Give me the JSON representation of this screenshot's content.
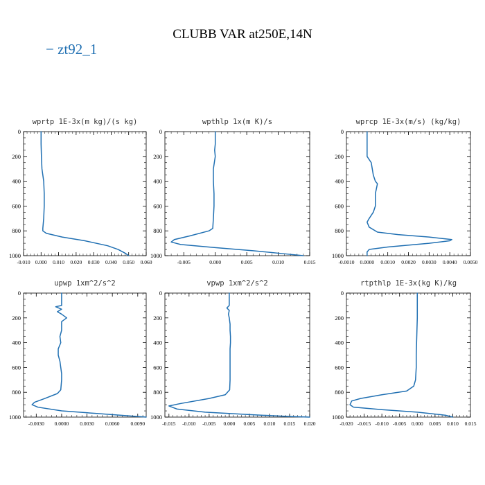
{
  "title": "CLUBB VAR at250E,14N",
  "legend": {
    "dash": "−",
    "label": "zt92_1",
    "color": "#1f6fb2"
  },
  "chart_data": [
    {
      "type": "line",
      "title": "wprtp  1E-3x(m kg)/(s kg)",
      "xlim": [
        -0.01,
        0.06
      ],
      "ylim": [
        0,
        1000
      ],
      "xticks": [
        -0.01,
        0.0,
        0.01,
        0.02,
        0.03,
        0.04,
        0.05,
        0.06
      ],
      "xtick_labels": [
        "-0.010",
        "0.000",
        "0.010",
        "0.020",
        "0.030",
        "0.040",
        "0.050",
        "0.060"
      ],
      "yticks": [
        0,
        200,
        400,
        600,
        800,
        1000
      ],
      "ytick_labels": [
        "0",
        "200",
        "400",
        "600",
        "800",
        "1000"
      ],
      "series": [
        {
          "name": "zt92_1",
          "points": [
            [
              0.0,
              0
            ],
            [
              0.0,
              100
            ],
            [
              0.0002,
              200
            ],
            [
              0.0005,
              300
            ],
            [
              0.0015,
              400
            ],
            [
              0.0018,
              500
            ],
            [
              0.0018,
              600
            ],
            [
              0.0015,
              700
            ],
            [
              0.001,
              780
            ],
            [
              0.001,
              800
            ],
            [
              0.003,
              820
            ],
            [
              0.012,
              850
            ],
            [
              0.025,
              880
            ],
            [
              0.038,
              920
            ],
            [
              0.044,
              950
            ],
            [
              0.048,
              980
            ],
            [
              0.05,
              1000
            ]
          ]
        }
      ]
    },
    {
      "type": "line",
      "title": "wpthlp  1x(m K)/s",
      "xlim": [
        -0.008,
        0.015
      ],
      "ylim": [
        0,
        1000
      ],
      "xticks": [
        -0.005,
        0.0,
        0.005,
        0.01,
        0.015
      ],
      "xtick_labels": [
        "-0.005",
        "0.000",
        "0.005",
        "0.010",
        "0.015"
      ],
      "yticks": [
        0,
        200,
        400,
        600,
        800,
        1000
      ],
      "ytick_labels": [
        "0",
        "200",
        "400",
        "600",
        "800",
        "1000"
      ],
      "series": [
        {
          "name": "zt92_1",
          "points": [
            [
              0.0,
              0
            ],
            [
              0.0,
              100
            ],
            [
              -0.0001,
              150
            ],
            [
              0.0,
              200
            ],
            [
              -0.0003,
              300
            ],
            [
              -0.0003,
              400
            ],
            [
              -0.0002,
              500
            ],
            [
              -0.0002,
              600
            ],
            [
              -0.0003,
              700
            ],
            [
              -0.0004,
              780
            ],
            [
              -0.001,
              800
            ],
            [
              -0.004,
              840
            ],
            [
              -0.0065,
              870
            ],
            [
              -0.007,
              890
            ],
            [
              -0.0055,
              910
            ],
            [
              0.0,
              935
            ],
            [
              0.006,
              960
            ],
            [
              0.011,
              985
            ],
            [
              0.014,
              1000
            ]
          ]
        }
      ]
    },
    {
      "type": "line",
      "title": "wprcp  1E-3x(m/s) (kg/kg)",
      "xlim": [
        -0.001,
        0.005
      ],
      "ylim": [
        0,
        1000
      ],
      "xticks": [
        -0.001,
        0.0,
        0.001,
        0.002,
        0.003,
        0.004,
        0.005
      ],
      "xtick_labels": [
        "-0.0010",
        "0.0000",
        "0.0010",
        "0.0020",
        "0.0030",
        "0.0040",
        "0.0050"
      ],
      "yticks": [
        0,
        200,
        400,
        600,
        800,
        1000
      ],
      "ytick_labels": [
        "0",
        "200",
        "400",
        "600",
        "800",
        "1000"
      ],
      "series": [
        {
          "name": "zt92_1",
          "points": [
            [
              0.0,
              0
            ],
            [
              0.0,
              150
            ],
            [
              0.0,
              200
            ],
            [
              0.0002,
              250
            ],
            [
              0.0003,
              350
            ],
            [
              0.0004,
              400
            ],
            [
              0.0005,
              420
            ],
            [
              0.0004,
              500
            ],
            [
              0.0004,
              600
            ],
            [
              0.0003,
              650
            ],
            [
              0.0001,
              700
            ],
            [
              0.0,
              730
            ],
            [
              0.0001,
              770
            ],
            [
              0.0005,
              810
            ],
            [
              0.0015,
              830
            ],
            [
              0.003,
              850
            ],
            [
              0.0041,
              870
            ],
            [
              0.004,
              880
            ],
            [
              0.003,
              900
            ],
            [
              0.001,
              930
            ],
            [
              0.0001,
              950
            ],
            [
              0.0,
              970
            ],
            [
              0.0,
              1000
            ]
          ]
        }
      ]
    },
    {
      "type": "line",
      "title": "upwp  1xm^2/s^2",
      "xlim": [
        -0.0045,
        0.01
      ],
      "ylim": [
        0,
        1000
      ],
      "xticks": [
        -0.003,
        0.0,
        0.003,
        0.006,
        0.009
      ],
      "xtick_labels": [
        "-0.0030",
        "0.0000",
        "0.0030",
        "0.0060",
        "0.0090"
      ],
      "yticks": [
        0,
        200,
        400,
        600,
        800,
        1000
      ],
      "ytick_labels": [
        "0",
        "200",
        "400",
        "600",
        "800",
        "1000"
      ],
      "series": [
        {
          "name": "zt92_1",
          "points": [
            [
              0.0,
              0
            ],
            [
              0.0,
              100
            ],
            [
              -0.0007,
              110
            ],
            [
              0.0,
              130
            ],
            [
              -0.0005,
              150
            ],
            [
              0.0,
              170
            ],
            [
              0.0006,
              200
            ],
            [
              0.0,
              230
            ],
            [
              0.0,
              300
            ],
            [
              -0.0002,
              350
            ],
            [
              -0.0001,
              400
            ],
            [
              -0.0004,
              450
            ],
            [
              -0.0004,
              500
            ],
            [
              -0.0002,
              550
            ],
            [
              -0.0001,
              600
            ],
            [
              0.0,
              650
            ],
            [
              0.0,
              700
            ],
            [
              -0.0001,
              780
            ],
            [
              -0.0005,
              810
            ],
            [
              -0.002,
              850
            ],
            [
              -0.0032,
              880
            ],
            [
              -0.0035,
              900
            ],
            [
              -0.0028,
              920
            ],
            [
              0.0,
              950
            ],
            [
              0.004,
              970
            ],
            [
              0.008,
              990
            ],
            [
              0.01,
              1000
            ]
          ]
        }
      ]
    },
    {
      "type": "line",
      "title": "vpwp  1xm^2/s^2",
      "xlim": [
        -0.016,
        0.02
      ],
      "ylim": [
        0,
        1000
      ],
      "xticks": [
        -0.015,
        -0.01,
        -0.005,
        0.0,
        0.005,
        0.01,
        0.015,
        0.02
      ],
      "xtick_labels": [
        "-0.015",
        "-0.010",
        "-0.005",
        "0.000",
        "0.005",
        "0.010",
        "0.015",
        "0.020"
      ],
      "yticks": [
        0,
        200,
        400,
        600,
        800,
        1000
      ],
      "ytick_labels": [
        "0",
        "200",
        "400",
        "600",
        "800",
        "1000"
      ],
      "series": [
        {
          "name": "zt92_1",
          "points": [
            [
              0.0,
              0
            ],
            [
              0.0,
              100
            ],
            [
              -0.0006,
              120
            ],
            [
              0.0,
              140
            ],
            [
              -0.0002,
              170
            ],
            [
              0.0,
              200
            ],
            [
              0.0002,
              250
            ],
            [
              0.0002,
              300
            ],
            [
              0.0003,
              350
            ],
            [
              0.0003,
              400
            ],
            [
              0.0002,
              450
            ],
            [
              0.0002,
              500
            ],
            [
              0.0002,
              600
            ],
            [
              0.0002,
              700
            ],
            [
              0.0001,
              780
            ],
            [
              -0.001,
              820
            ],
            [
              -0.005,
              850
            ],
            [
              -0.012,
              890
            ],
            [
              -0.015,
              910
            ],
            [
              -0.013,
              935
            ],
            [
              -0.006,
              960
            ],
            [
              0.005,
              980
            ],
            [
              0.015,
              995
            ],
            [
              0.02,
              1000
            ]
          ]
        }
      ]
    },
    {
      "type": "line",
      "title": "rtpthlp  1E-3x(kg K)/kg",
      "xlim": [
        -0.02,
        0.015
      ],
      "ylim": [
        0,
        1000
      ],
      "xticks": [
        -0.02,
        -0.015,
        -0.01,
        -0.005,
        0.0,
        0.005,
        0.01,
        0.015
      ],
      "xtick_labels": [
        "-0.020",
        "-0.015",
        "-0.010",
        "-0.005",
        "0.000",
        "0.005",
        "0.010",
        "0.015"
      ],
      "yticks": [
        0,
        200,
        400,
        600,
        800,
        1000
      ],
      "ytick_labels": [
        "0",
        "200",
        "400",
        "600",
        "800",
        "1000"
      ],
      "series": [
        {
          "name": "zt92_1",
          "points": [
            [
              0.0,
              0
            ],
            [
              0.0,
              100
            ],
            [
              0.0,
              200
            ],
            [
              -0.0001,
              300
            ],
            [
              -0.0002,
              400
            ],
            [
              -0.0003,
              500
            ],
            [
              -0.0003,
              600
            ],
            [
              -0.0005,
              700
            ],
            [
              -0.001,
              750
            ],
            [
              -0.003,
              790
            ],
            [
              -0.01,
              820
            ],
            [
              -0.016,
              850
            ],
            [
              -0.0185,
              870
            ],
            [
              -0.019,
              900
            ],
            [
              -0.018,
              920
            ],
            [
              -0.01,
              940
            ],
            [
              0.0,
              960
            ],
            [
              0.008,
              985
            ],
            [
              0.01,
              1000
            ]
          ]
        }
      ]
    }
  ]
}
